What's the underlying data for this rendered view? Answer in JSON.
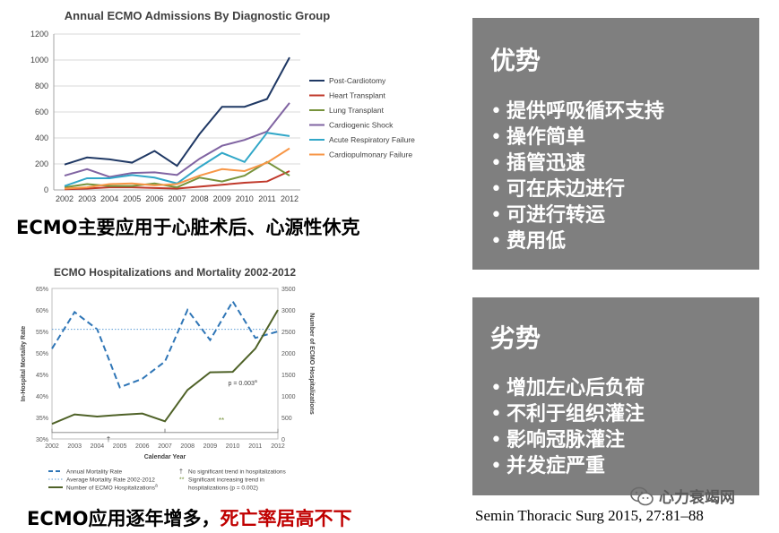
{
  "chart_data": [
    {
      "type": "line",
      "title": "Annual ECMO Admissions By Diagnostic Group",
      "x": [
        "2002",
        "2003",
        "2004",
        "2005",
        "2006",
        "2007",
        "2008",
        "2009",
        "2010",
        "2011",
        "2012"
      ],
      "ylim": [
        0,
        1200
      ],
      "yticks": [
        0,
        200,
        400,
        600,
        800,
        1000,
        1200
      ],
      "grid": true,
      "legend": "right",
      "series": [
        {
          "name": "Post-Cardiotomy",
          "color": "#1f3864",
          "values": [
            195,
            250,
            235,
            210,
            300,
            185,
            430,
            640,
            640,
            700,
            1020
          ]
        },
        {
          "name": "Heart Transplant",
          "color": "#c0392b",
          "values": [
            5,
            10,
            20,
            20,
            15,
            10,
            25,
            40,
            55,
            65,
            145
          ]
        },
        {
          "name": "Lung Transplant",
          "color": "#77933c",
          "values": [
            20,
            45,
            30,
            30,
            50,
            20,
            95,
            65,
            110,
            215,
            110
          ]
        },
        {
          "name": "Cardiogenic Shock",
          "color": "#8064a2",
          "values": [
            110,
            160,
            100,
            130,
            135,
            115,
            240,
            340,
            385,
            450,
            670
          ]
        },
        {
          "name": "Acute Respiratory Failure",
          "color": "#31a7c8",
          "values": [
            30,
            90,
            90,
            115,
            95,
            50,
            175,
            285,
            215,
            440,
            415
          ]
        },
        {
          "name": "Cardiopulmonary Failure",
          "color": "#f79646",
          "values": [
            10,
            20,
            45,
            50,
            35,
            45,
            110,
            160,
            145,
            210,
            320
          ]
        }
      ]
    },
    {
      "type": "line",
      "title": "ECMO Hospitalizations and Mortality 2002-2012",
      "xlabel": "Calendar Year",
      "ylabel": "In-Hospital Mortality Rate",
      "y2label": "Number of ECMO Hospitalizations",
      "x": [
        "2002",
        "2003",
        "2004",
        "2005",
        "2006",
        "2007",
        "2008",
        "2009",
        "2010",
        "2011",
        "2012"
      ],
      "ylim": [
        30,
        65
      ],
      "yticks": [
        "30%",
        "35%",
        "40%",
        "45%",
        "50%",
        "55%",
        "60%",
        "65%"
      ],
      "y2lim": [
        0,
        3500
      ],
      "y2ticks": [
        0,
        500,
        1000,
        1500,
        2000,
        2500,
        3000,
        3500
      ],
      "series": [
        {
          "name": "Annual Mortality Rate",
          "style": "dashed",
          "color": "#2e75b6",
          "axis": "left",
          "values": [
            51,
            59.5,
            55.5,
            42,
            44,
            48,
            60,
            53,
            62,
            53.5,
            55
          ]
        },
        {
          "name": "Average Mortality Rate 2002-2012",
          "style": "dotted",
          "color": "#5b9bd5",
          "axis": "left",
          "values": [
            55.5,
            55.5,
            55.5,
            55.5,
            55.5,
            55.5,
            55.5,
            55.5,
            55.5,
            55.5,
            55.5
          ]
        },
        {
          "name": "Number of ECMO Hospitalizations",
          "superscript": "a",
          "style": "solid",
          "color": "#4f6228",
          "axis": "right",
          "values": [
            350,
            570,
            520,
            560,
            590,
            410,
            1140,
            1550,
            1560,
            2100,
            3000
          ]
        }
      ],
      "annotations": {
        "p_value": "p = 0.003",
        "p_superscript": "a",
        "dagger": "†",
        "double_star": "**",
        "note_dagger": "No significant trend in hospitalizations",
        "note_star_1": "Significant increasing trend in",
        "note_star_2": "hospitalizations (p = 0.002)",
        "legend_star": "**"
      }
    }
  ],
  "captions": {
    "top": "ECMO主要应用于心脏术后、心源性休克",
    "bottom_black": "ECMO应用逐年增多，",
    "bottom_red": "死亡率居高不下"
  },
  "advantages": {
    "title": "优势",
    "items": [
      "提供呼吸循环支持",
      "操作简单",
      "插管迅速",
      "可在床边进行",
      "可进行转运",
      "费用低"
    ]
  },
  "disadvantages": {
    "title": "劣势",
    "items": [
      "增加左心后负荷",
      "不利于组织灌注",
      "影响冠脉灌注",
      "并发症严重"
    ]
  },
  "reference": "Semin Thoracic Surg 2015, 27:81–88",
  "watermark": "心力衰竭网",
  "colors": {
    "panel": "#7f7f7f",
    "caption_red": "#c00000"
  }
}
